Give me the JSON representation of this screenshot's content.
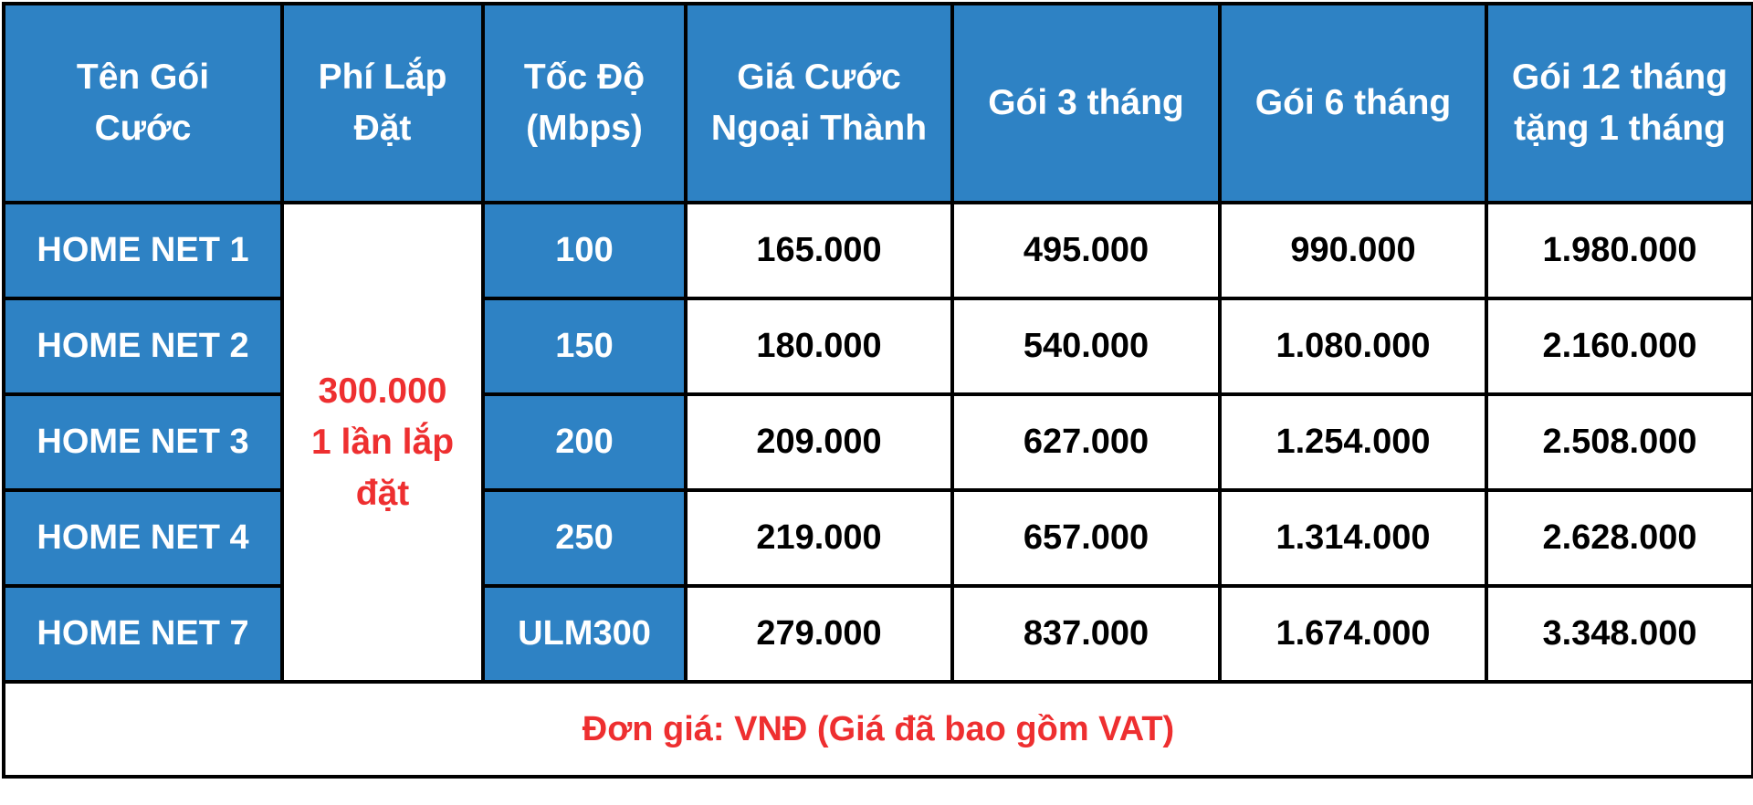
{
  "header": {
    "col_name": [
      "Tên Gói",
      "Cước"
    ],
    "col_install": [
      "Phí Lắp",
      "Đặt"
    ],
    "col_speed": [
      "Tốc Độ",
      "(Mbps)"
    ],
    "col_suburban": [
      "Giá Cước",
      "Ngoại Thành"
    ],
    "col_3m": [
      "Gói 3 tháng"
    ],
    "col_6m": [
      "Gói 6 tháng"
    ],
    "col_12m": [
      "Gói 12 tháng",
      "tặng 1 tháng"
    ]
  },
  "install_fee": [
    "300.000",
    "1 lần lắp",
    "đặt"
  ],
  "rows": [
    {
      "name": "HOME NET 1",
      "speed": "100",
      "suburban": "165.000",
      "m3": "495.000",
      "m6": "990.000",
      "m12": "1.980.000"
    },
    {
      "name": "HOME NET 2",
      "speed": "150",
      "suburban": "180.000",
      "m3": "540.000",
      "m6": "1.080.000",
      "m12": "2.160.000"
    },
    {
      "name": "HOME NET 3",
      "speed": "200",
      "suburban": "209.000",
      "m3": "627.000",
      "m6": "1.254.000",
      "m12": "2.508.000"
    },
    {
      "name": "HOME NET 4",
      "speed": "250",
      "suburban": "219.000",
      "m3": "657.000",
      "m6": "1.314.000",
      "m12": "2.628.000"
    },
    {
      "name": "HOME NET 7",
      "speed": "ULM300",
      "suburban": "279.000",
      "m3": "837.000",
      "m6": "1.674.000",
      "m12": "3.348.000"
    }
  ],
  "footer": "Đơn giá: VNĐ (Giá đã bao gồm VAT)",
  "colors": {
    "header_bg": "#2e82c4",
    "accent_red": "#ee2f30",
    "border": "#000000"
  }
}
